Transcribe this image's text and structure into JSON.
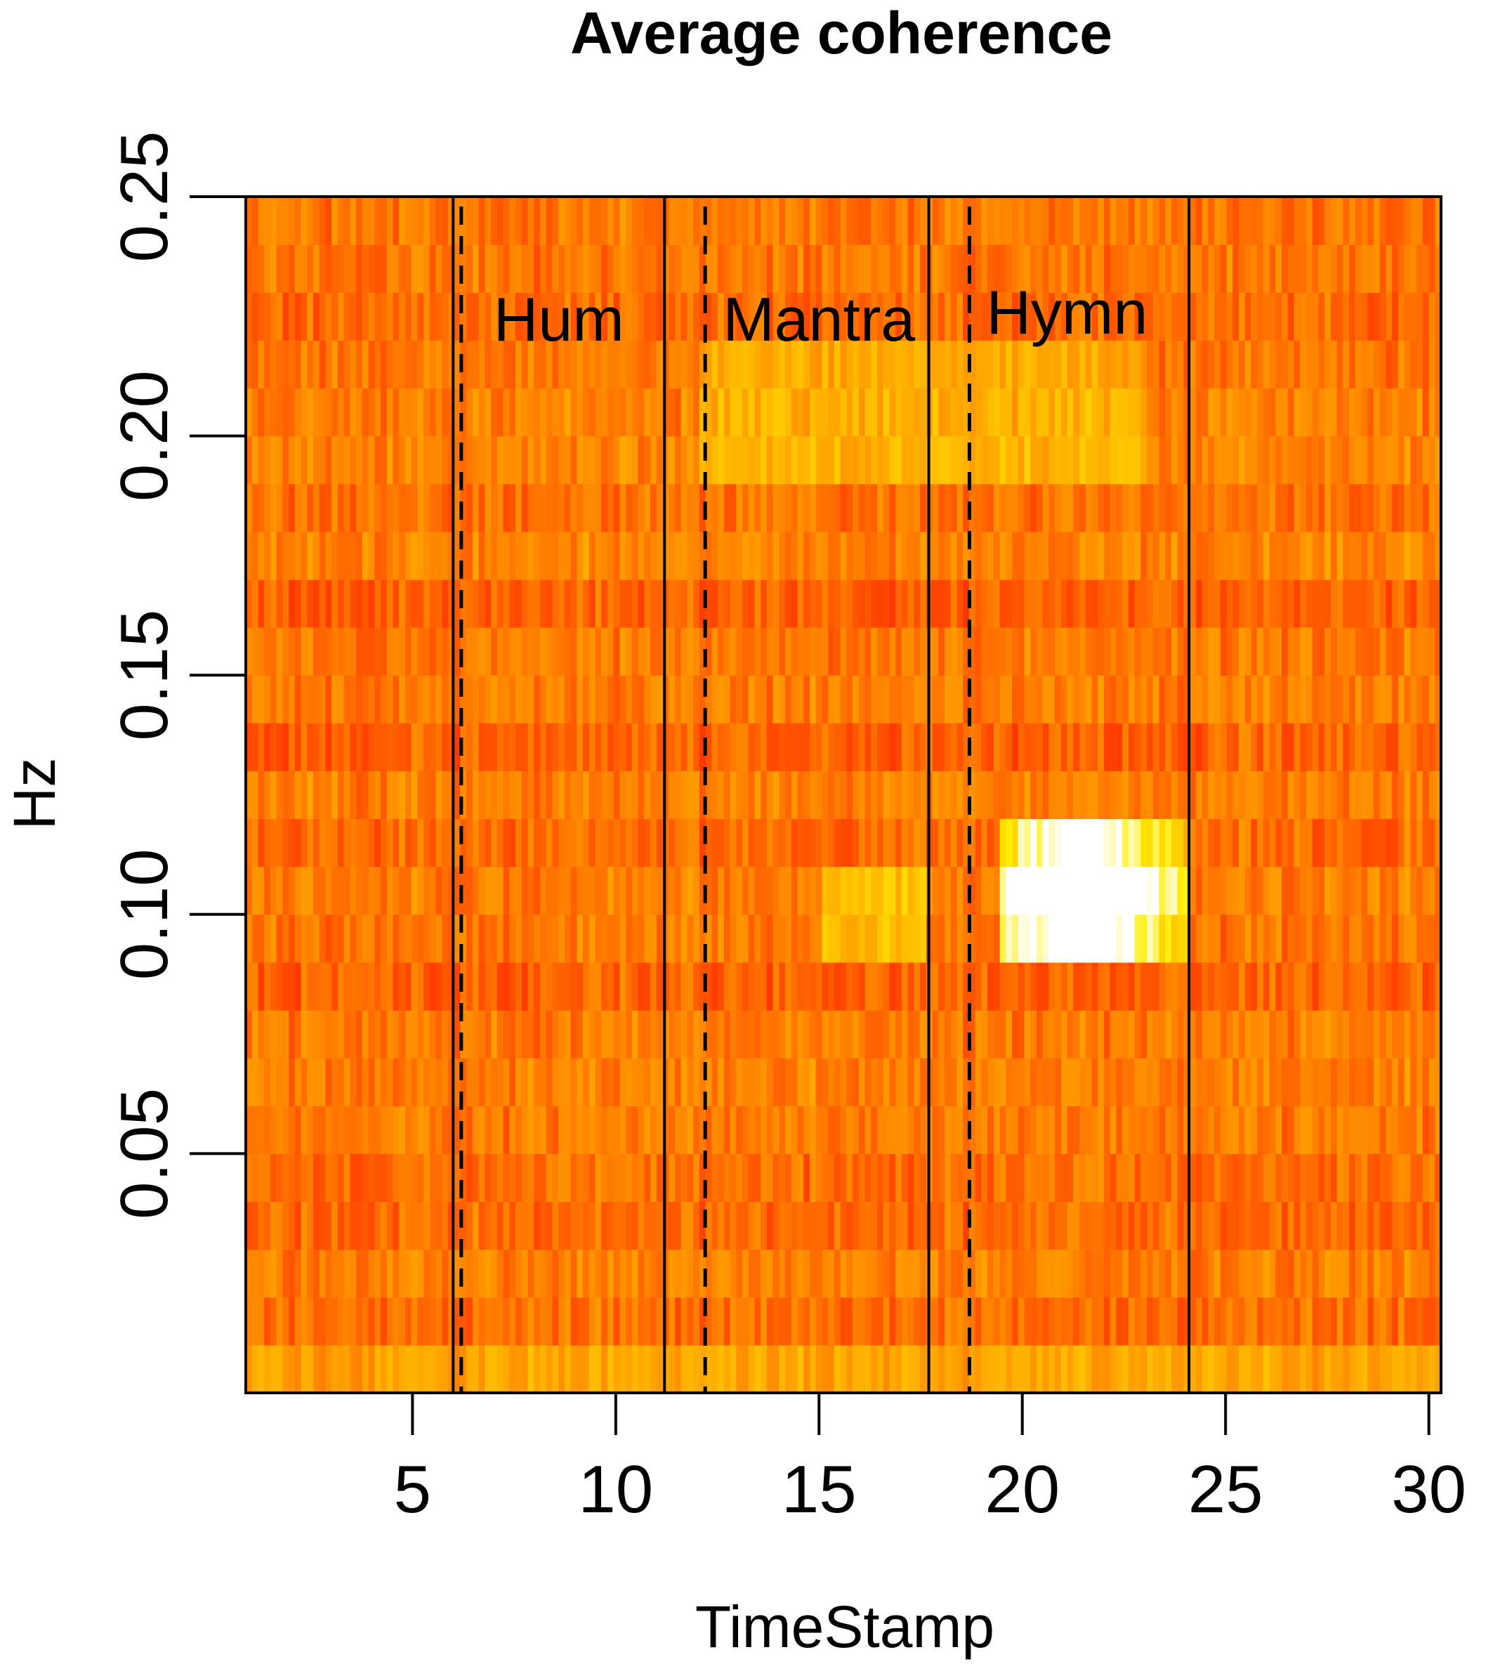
{
  "chart_data": {
    "type": "heatmap",
    "title": "Average coherence",
    "xlabel": "TimeStamp",
    "ylabel": "Hz",
    "xlim": [
      0.9,
      30.3
    ],
    "ylim": [
      0.0,
      0.25
    ],
    "y_bins": [
      0.0,
      0.25
    ],
    "x_ticks": [
      5,
      10,
      15,
      20,
      25,
      30
    ],
    "x_tick_labels": [
      "5",
      "10",
      "15",
      "20",
      "25",
      "30"
    ],
    "y_ticks": [
      0.05,
      0.1,
      0.15,
      0.2,
      0.25
    ],
    "y_tick_labels": [
      "0.05",
      "0.10",
      "0.15",
      "0.20",
      "0.25"
    ],
    "colormap": "heat",
    "colormap_stops": [
      "#ff0000",
      "#ff4400",
      "#ff8800",
      "#ffbb00",
      "#ffee00",
      "#ffffff"
    ],
    "phase_boundaries": [
      6.0,
      11.2,
      17.7,
      24.1
    ],
    "dashed_lines": [
      6.2,
      12.2,
      18.7
    ],
    "phases": [
      {
        "label": "Hum",
        "x": 8.6
      },
      {
        "label": "Mantra",
        "x": 15.0
      },
      {
        "label": "Hymn",
        "x": 21.1
      }
    ],
    "frame_color": "#000000",
    "grid": false,
    "legend": "none"
  }
}
